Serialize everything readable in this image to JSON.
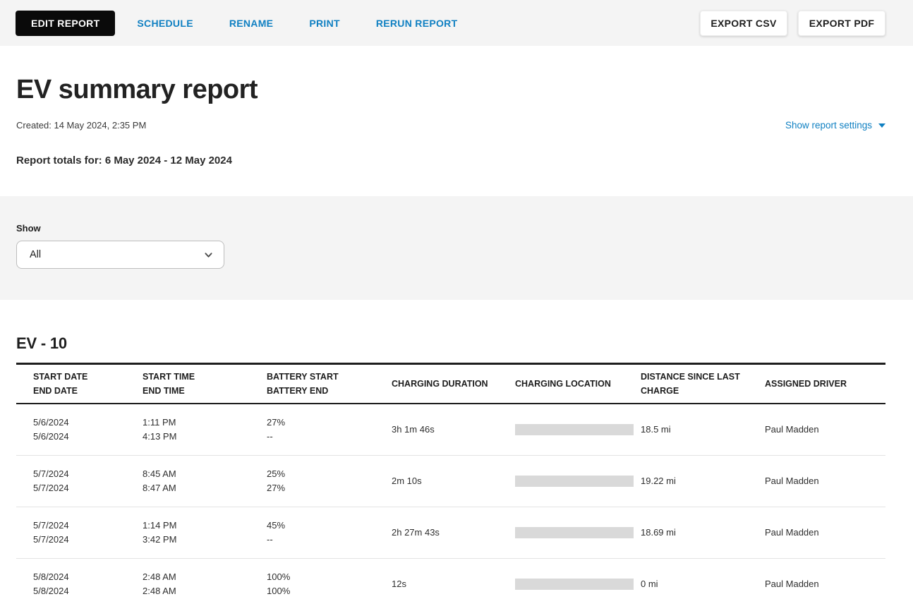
{
  "toolbar": {
    "edit_report": "EDIT REPORT",
    "schedule": "SCHEDULE",
    "rename": "RENAME",
    "print": "PRINT",
    "rerun_report": "RERUN REPORT",
    "export_csv": "EXPORT CSV",
    "export_pdf": "EXPORT PDF"
  },
  "header": {
    "title": "EV summary report",
    "created": "Created: 14 May 2024, 2:35 PM",
    "show_report_settings": "Show report settings",
    "report_totals": "Report totals for: 6 May 2024 - 12 May 2024"
  },
  "filter": {
    "label": "Show",
    "selected": "All"
  },
  "section": {
    "title": "EV - 10"
  },
  "table": {
    "columns": [
      {
        "lines": [
          "START DATE",
          "END DATE"
        ]
      },
      {
        "lines": [
          "START TIME",
          "END TIME"
        ]
      },
      {
        "lines": [
          "BATTERY START",
          "BATTERY END"
        ]
      },
      {
        "lines": [
          "CHARGING DURATION"
        ]
      },
      {
        "lines": [
          "CHARGING LOCATION"
        ]
      },
      {
        "lines": [
          "DISTANCE SINCE LAST CHARGE"
        ]
      },
      {
        "lines": [
          "ASSIGNED DRIVER"
        ]
      }
    ],
    "rows": [
      {
        "start_date": "5/6/2024",
        "end_date": "5/6/2024",
        "start_time": "1:11 PM",
        "end_time": "4:13 PM",
        "battery_start": "27%",
        "battery_end": "--",
        "charging_duration": "3h 1m 46s",
        "charging_location_redacted": true,
        "distance_since_last_charge": "18.5 mi",
        "assigned_driver": "Paul Madden"
      },
      {
        "start_date": "5/7/2024",
        "end_date": "5/7/2024",
        "start_time": "8:45 AM",
        "end_time": "8:47 AM",
        "battery_start": "25%",
        "battery_end": "27%",
        "charging_duration": "2m 10s",
        "charging_location_redacted": true,
        "distance_since_last_charge": "19.22 mi",
        "assigned_driver": "Paul Madden"
      },
      {
        "start_date": "5/7/2024",
        "end_date": "5/7/2024",
        "start_time": "1:14 PM",
        "end_time": "3:42 PM",
        "battery_start": "45%",
        "battery_end": "--",
        "charging_duration": "2h 27m 43s",
        "charging_location_redacted": true,
        "distance_since_last_charge": "18.69 mi",
        "assigned_driver": "Paul Madden"
      },
      {
        "start_date": "5/8/2024",
        "end_date": "5/8/2024",
        "start_time": "2:48 AM",
        "end_time": "2:48 AM",
        "battery_start": "100%",
        "battery_end": "100%",
        "charging_duration": "12s",
        "charging_location_redacted": true,
        "distance_since_last_charge": "0 mi",
        "assigned_driver": "Paul Madden"
      }
    ]
  },
  "colors": {
    "accent_blue": "#1080c2",
    "button_black": "#0a0a0a",
    "band_gray": "#f4f4f4",
    "redaction_gray": "#d9d9d9",
    "text_dark": "#1d1d1d"
  }
}
